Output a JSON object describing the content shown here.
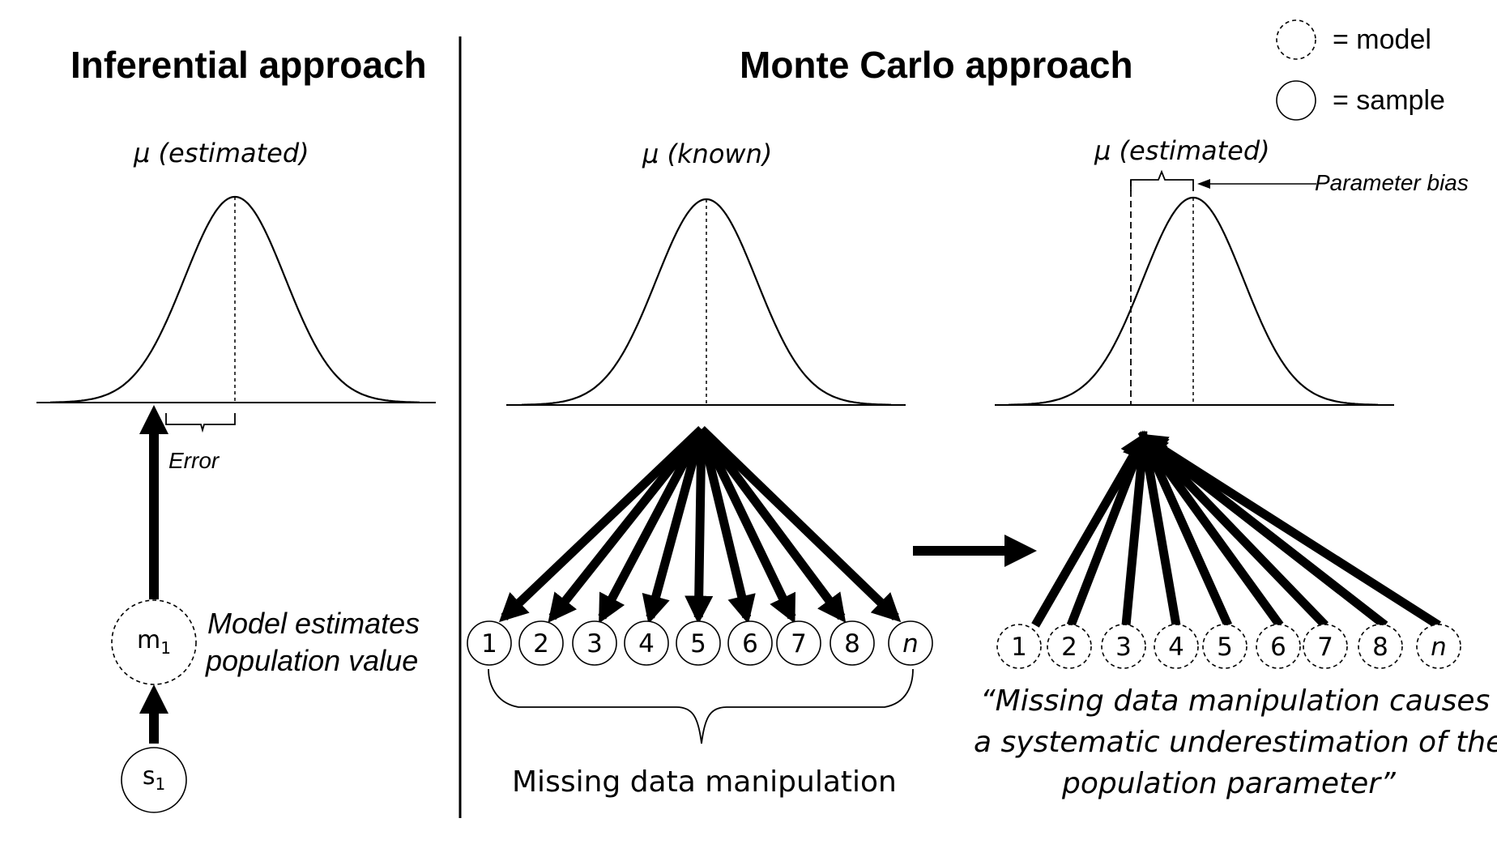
{
  "headings": {
    "inferential": "Inferential approach",
    "monte_carlo": "Monte Carlo approach"
  },
  "legend": {
    "model_label": "= model",
    "sample_label": "= sample"
  },
  "inferential": {
    "mu_label": "μ (estimated)",
    "error_label": "Error",
    "model_node_base": "m",
    "model_node_sub": "1",
    "sample_node_base": "s",
    "sample_node_sub": "1",
    "model_caption_line1": "Model estimates",
    "model_caption_line2": "population value"
  },
  "monte_carlo_known": {
    "mu_label": "μ (known)",
    "nodes": [
      "1",
      "2",
      "3",
      "4",
      "5",
      "6",
      "7",
      "8",
      "n"
    ],
    "caption": "Missing data manipulation"
  },
  "monte_carlo_estimated": {
    "mu_label": "μ (estimated)",
    "bias_label": "Parameter bias",
    "nodes": [
      "1",
      "2",
      "3",
      "4",
      "5",
      "6",
      "7",
      "8",
      "n"
    ],
    "quote_line1": "“Missing data manipulation causes",
    "quote_line2": "a systematic underestimation of the",
    "quote_line3": "population parameter”"
  }
}
